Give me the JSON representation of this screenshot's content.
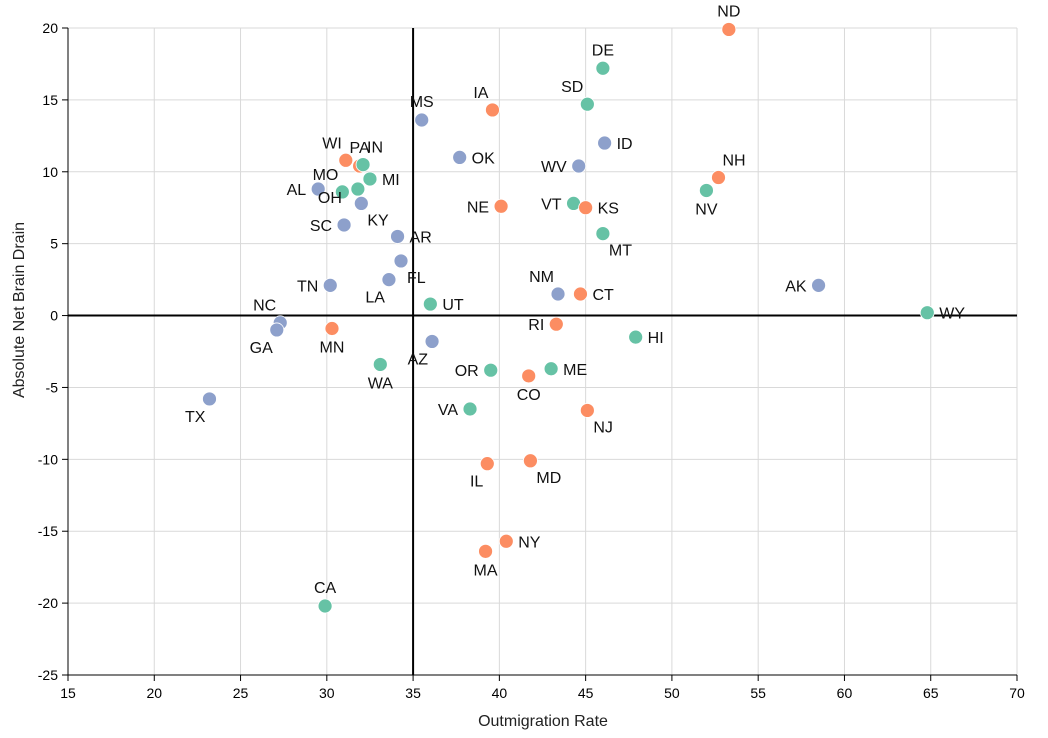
{
  "chart_data": {
    "type": "scatter",
    "xlabel": "Outmigration Rate",
    "ylabel": "Absolute Net Brain Drain",
    "xlim": [
      15,
      70
    ],
    "ylim": [
      -25,
      20
    ],
    "x_ticks": [
      15,
      20,
      25,
      30,
      35,
      40,
      45,
      50,
      55,
      60,
      65,
      70
    ],
    "y_ticks": [
      20,
      15,
      10,
      5,
      0,
      -5,
      -10,
      -15,
      -20,
      -25
    ],
    "y_tick_labels": [
      "20",
      "15",
      "10",
      "5",
      "0",
      "-5",
      "-10",
      "-15",
      "-20",
      "-25"
    ],
    "grid": true,
    "reference_lines": {
      "x": 35,
      "y": 0
    },
    "colors": {
      "green": "#66c2a5",
      "orange": "#fc8d62",
      "blue": "#8da0cb"
    },
    "points": [
      {
        "label": "ND",
        "x": 53.3,
        "y": 19.9,
        "color": "orange",
        "pos": "above"
      },
      {
        "label": "DE",
        "x": 46.0,
        "y": 17.2,
        "color": "green",
        "pos": "above"
      },
      {
        "label": "SD",
        "x": 45.1,
        "y": 14.7,
        "color": "green",
        "pos": "aboveleft"
      },
      {
        "label": "IA",
        "x": 39.6,
        "y": 14.3,
        "color": "orange",
        "pos": "aboveleft"
      },
      {
        "label": "MS",
        "x": 35.5,
        "y": 13.6,
        "color": "blue",
        "pos": "above"
      },
      {
        "label": "ID",
        "x": 46.1,
        "y": 12.0,
        "color": "blue",
        "pos": "right"
      },
      {
        "label": "OK",
        "x": 37.7,
        "y": 11.0,
        "color": "blue",
        "pos": "right"
      },
      {
        "label": "WV",
        "x": 44.6,
        "y": 10.4,
        "color": "blue",
        "pos": "left"
      },
      {
        "label": "NH",
        "x": 52.7,
        "y": 9.6,
        "color": "orange",
        "pos": "aboveright"
      },
      {
        "label": "NV",
        "x": 52.0,
        "y": 8.7,
        "color": "green",
        "pos": "below"
      },
      {
        "label": "WI",
        "x": 31.1,
        "y": 10.8,
        "color": "orange",
        "pos": "aboveleft"
      },
      {
        "label": "PA",
        "x": 31.9,
        "y": 10.4,
        "color": "orange",
        "pos": "above"
      },
      {
        "label": "IN",
        "x": 32.1,
        "y": 10.5,
        "color": "green",
        "pos": "aboveright"
      },
      {
        "label": "MI",
        "x": 32.5,
        "y": 9.5,
        "color": "green",
        "pos": "right"
      },
      {
        "label": "AL",
        "x": 29.5,
        "y": 8.8,
        "color": "blue",
        "pos": "left"
      },
      {
        "label": "MO",
        "x": 30.9,
        "y": 8.6,
        "color": "green",
        "pos": "aboveleft"
      },
      {
        "label": "OH",
        "x": 31.8,
        "y": 8.8,
        "color": "green",
        "pos": "belowleftfar"
      },
      {
        "label": "KY",
        "x": 32.0,
        "y": 7.8,
        "color": "blue",
        "pos": "belowright"
      },
      {
        "label": "NE",
        "x": 40.1,
        "y": 7.6,
        "color": "orange",
        "pos": "left"
      },
      {
        "label": "VT",
        "x": 44.3,
        "y": 7.8,
        "color": "green",
        "pos": "left"
      },
      {
        "label": "KS",
        "x": 45.0,
        "y": 7.5,
        "color": "orange",
        "pos": "right"
      },
      {
        "label": "SC",
        "x": 31.0,
        "y": 6.3,
        "color": "blue",
        "pos": "left"
      },
      {
        "label": "AR",
        "x": 34.1,
        "y": 5.5,
        "color": "blue",
        "pos": "right"
      },
      {
        "label": "MT",
        "x": 46.0,
        "y": 5.7,
        "color": "green",
        "pos": "belowright"
      },
      {
        "label": "FL",
        "x": 34.3,
        "y": 3.8,
        "color": "blue",
        "pos": "belowright"
      },
      {
        "label": "TN",
        "x": 30.2,
        "y": 2.1,
        "color": "blue",
        "pos": "left"
      },
      {
        "label": "LA",
        "x": 33.6,
        "y": 2.5,
        "color": "blue",
        "pos": "belowleft"
      },
      {
        "label": "NM",
        "x": 43.4,
        "y": 1.5,
        "color": "blue",
        "pos": "aboveleft"
      },
      {
        "label": "CT",
        "x": 44.7,
        "y": 1.5,
        "color": "orange",
        "pos": "right"
      },
      {
        "label": "AK",
        "x": 58.5,
        "y": 2.1,
        "color": "blue",
        "pos": "left"
      },
      {
        "label": "UT",
        "x": 36.0,
        "y": 0.8,
        "color": "green",
        "pos": "right"
      },
      {
        "label": "WY",
        "x": 64.8,
        "y": 0.2,
        "color": "green",
        "pos": "right"
      },
      {
        "label": "NC",
        "x": 27.3,
        "y": -0.5,
        "color": "blue",
        "pos": "aboveleft"
      },
      {
        "label": "GA",
        "x": 27.1,
        "y": -1.0,
        "color": "blue",
        "pos": "belowleft"
      },
      {
        "label": "MN",
        "x": 30.3,
        "y": -0.9,
        "color": "orange",
        "pos": "below"
      },
      {
        "label": "RI",
        "x": 43.3,
        "y": -0.6,
        "color": "orange",
        "pos": "left"
      },
      {
        "label": "HI",
        "x": 47.9,
        "y": -1.5,
        "color": "green",
        "pos": "right"
      },
      {
        "label": "AZ",
        "x": 36.1,
        "y": -1.8,
        "color": "blue",
        "pos": "belowleft"
      },
      {
        "label": "WA",
        "x": 33.1,
        "y": -3.4,
        "color": "green",
        "pos": "below"
      },
      {
        "label": "OR",
        "x": 39.5,
        "y": -3.8,
        "color": "green",
        "pos": "left"
      },
      {
        "label": "ME",
        "x": 43.0,
        "y": -3.7,
        "color": "green",
        "pos": "right"
      },
      {
        "label": "CO",
        "x": 41.7,
        "y": -4.2,
        "color": "orange",
        "pos": "below"
      },
      {
        "label": "TX",
        "x": 23.2,
        "y": -5.8,
        "color": "blue",
        "pos": "belowleft"
      },
      {
        "label": "VA",
        "x": 38.3,
        "y": -6.5,
        "color": "green",
        "pos": "left"
      },
      {
        "label": "NJ",
        "x": 45.1,
        "y": -6.6,
        "color": "orange",
        "pos": "belowright"
      },
      {
        "label": "IL",
        "x": 39.3,
        "y": -10.3,
        "color": "orange",
        "pos": "belowleft"
      },
      {
        "label": "MD",
        "x": 41.8,
        "y": -10.1,
        "color": "orange",
        "pos": "belowright"
      },
      {
        "label": "NY",
        "x": 40.4,
        "y": -15.7,
        "color": "orange",
        "pos": "right"
      },
      {
        "label": "MA",
        "x": 39.2,
        "y": -16.4,
        "color": "orange",
        "pos": "below"
      },
      {
        "label": "CA",
        "x": 29.9,
        "y": -20.2,
        "color": "green",
        "pos": "above"
      }
    ]
  }
}
